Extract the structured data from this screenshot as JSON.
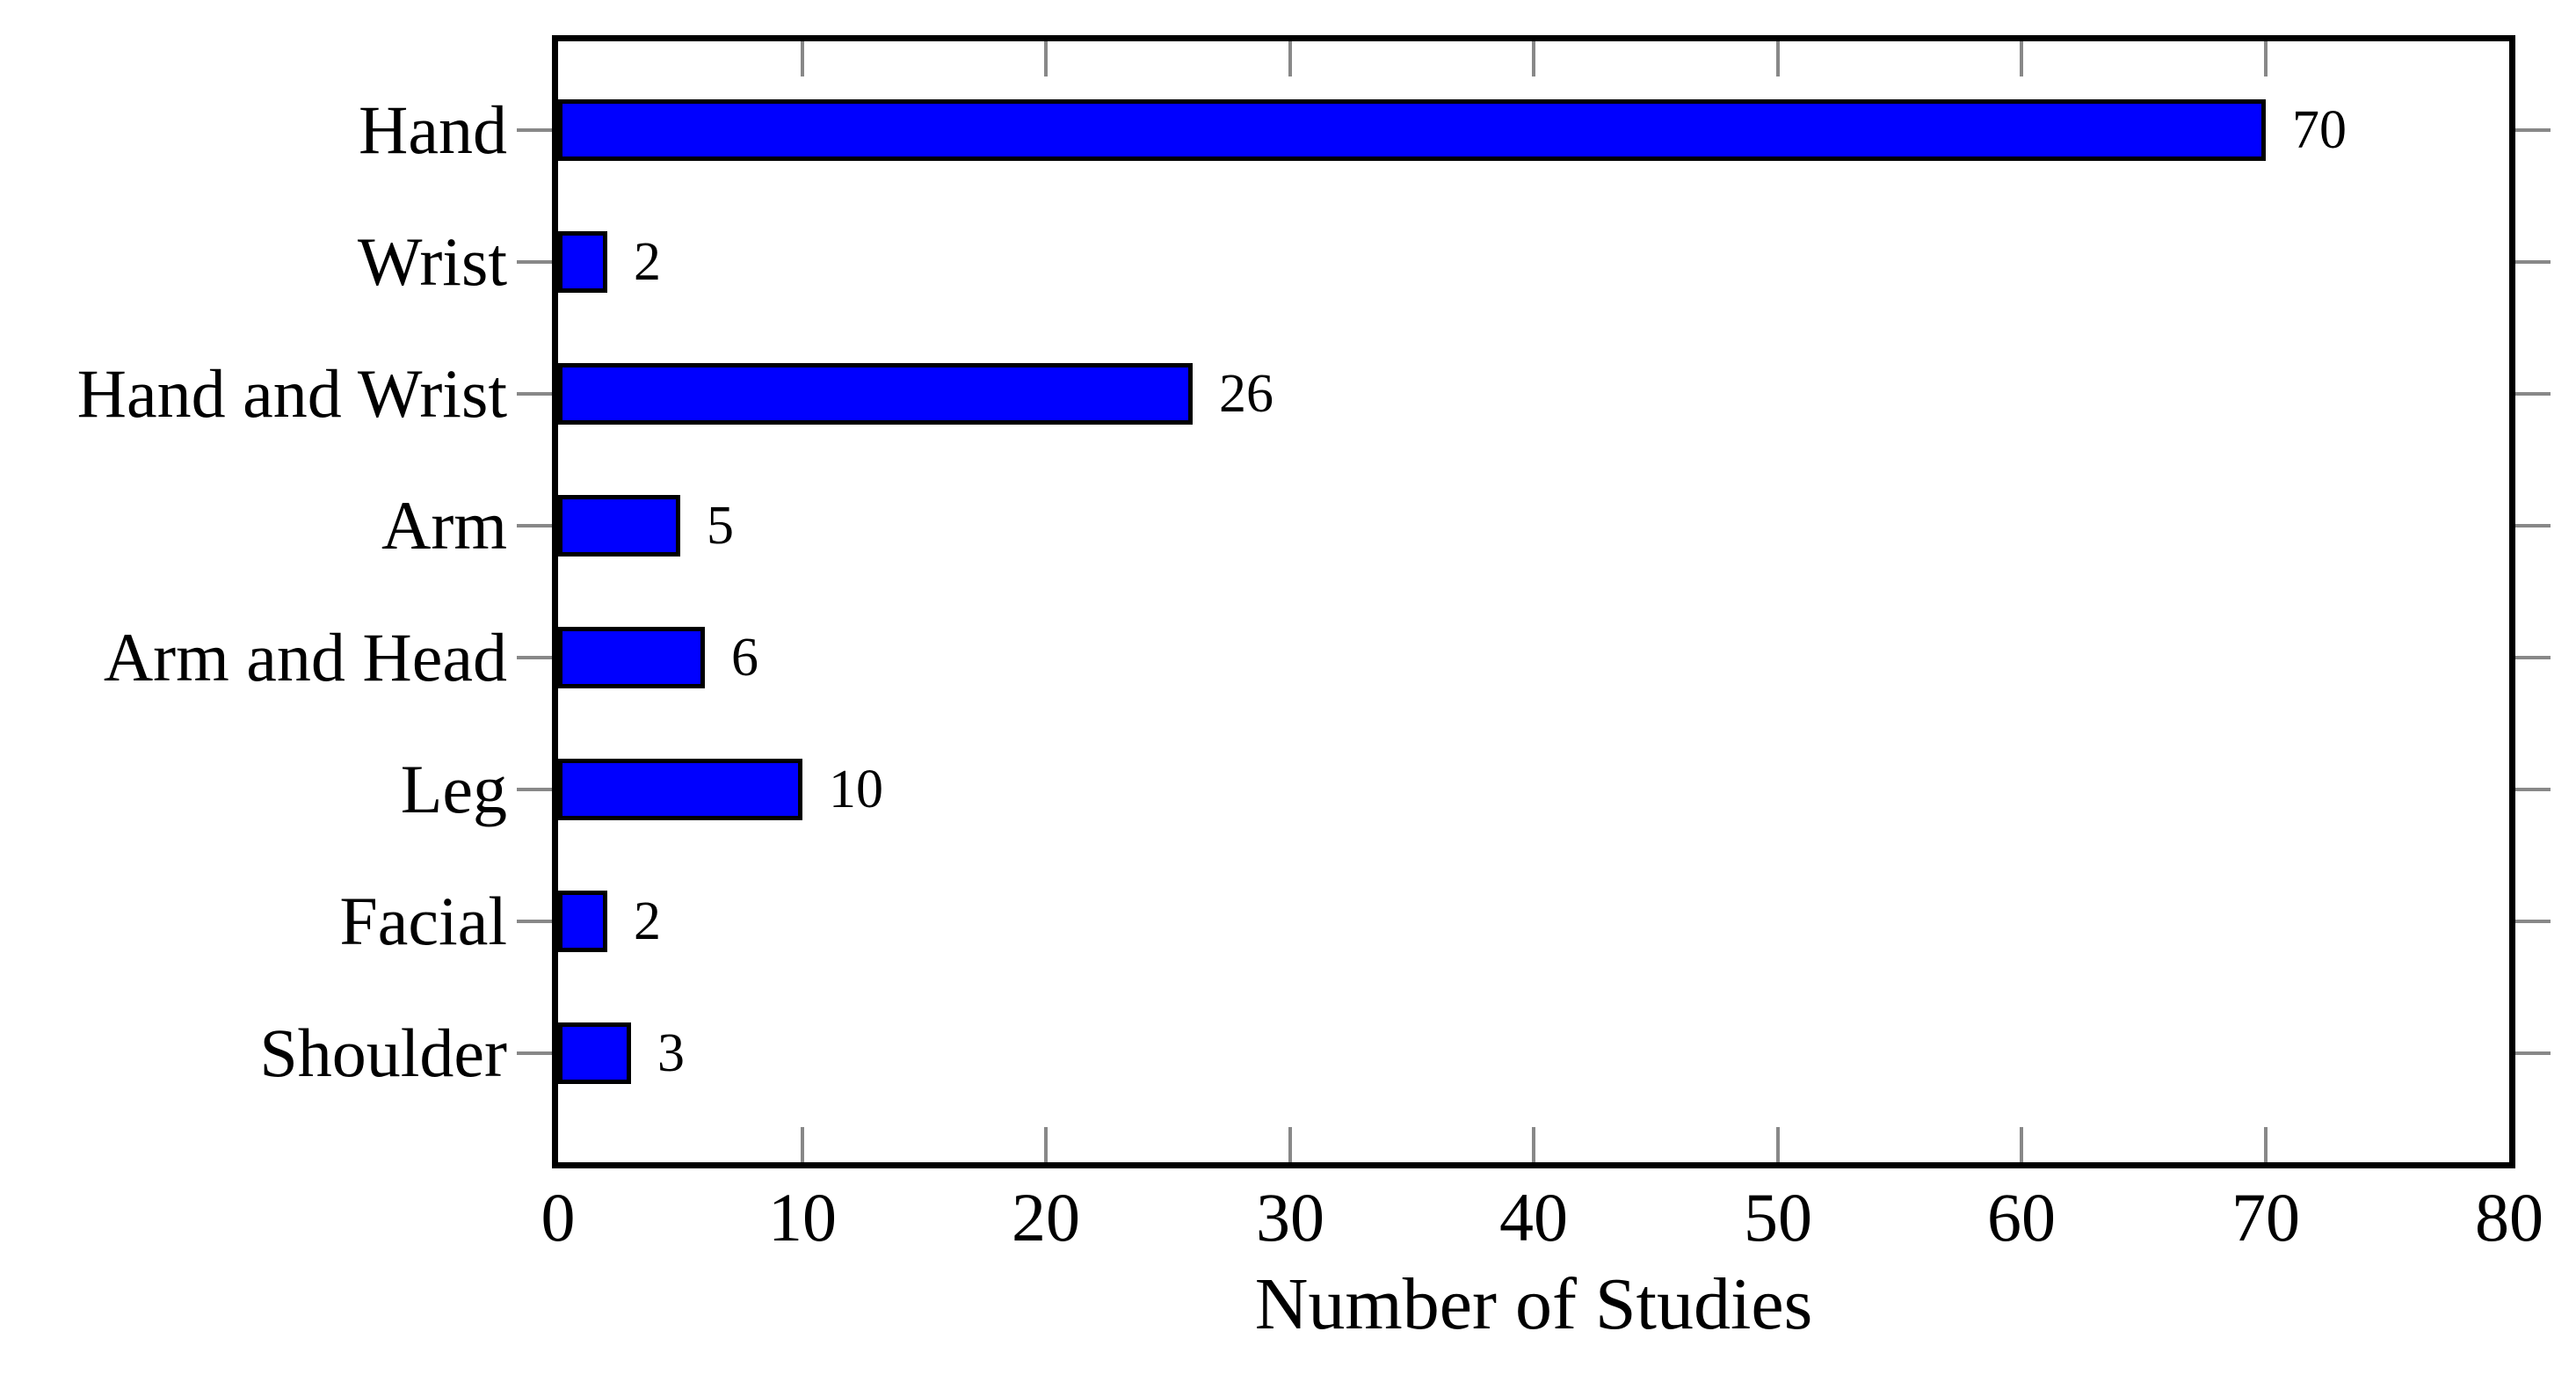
{
  "chart_data": {
    "type": "bar",
    "orientation": "horizontal",
    "title": "",
    "xlabel": "Number of Studies",
    "ylabel": "",
    "categories": [
      "Hand",
      "Wrist",
      "Hand and Wrist",
      "Arm",
      "Arm and Head",
      "Leg",
      "Facial",
      "Shoulder"
    ],
    "values": [
      70,
      2,
      26,
      5,
      6,
      10,
      2,
      3
    ],
    "value_labels": [
      "70",
      "2",
      "26",
      "5",
      "6",
      "10",
      "2",
      "3"
    ],
    "xlim": [
      0,
      80
    ],
    "xtick_step": 10,
    "xtick_labels": [
      "0",
      "10",
      "20",
      "30",
      "40",
      "50",
      "60",
      "70",
      "80"
    ],
    "grid": false,
    "legend": "none",
    "colors": {
      "bar_fill": "#0000ff",
      "bar_border": "#000000",
      "plot_border": "#000000",
      "tick_mark": "#888888",
      "text": "#000000",
      "background": "#ffffff"
    }
  }
}
